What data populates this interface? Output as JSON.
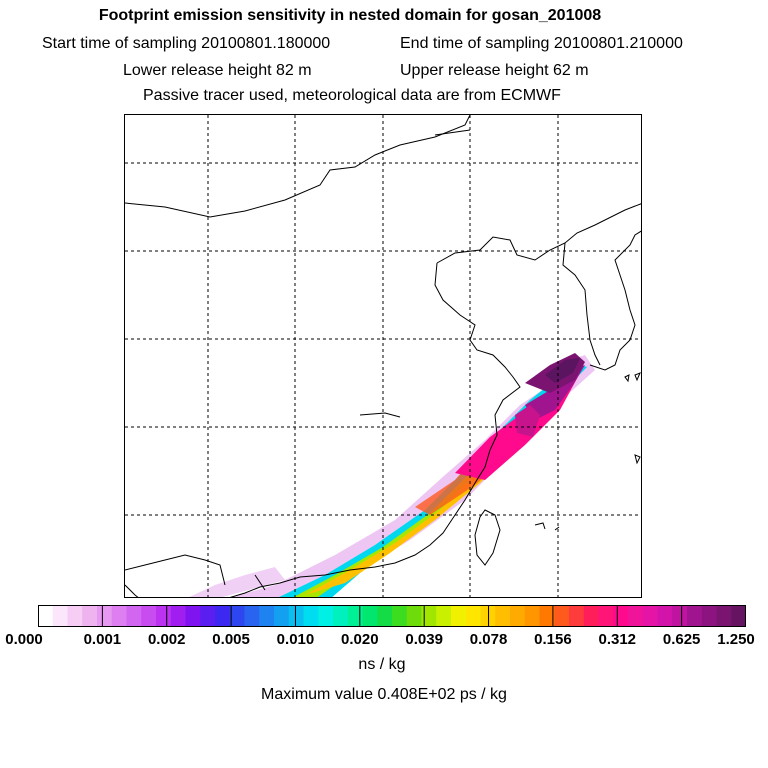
{
  "header": {
    "title": "Footprint emission sensitivity in nested domain for gosan_201008",
    "start_label": "Start time of sampling 20100801.180000",
    "end_label": "End time of sampling 20100801.210000",
    "lower_label": "Lower release height   82 m",
    "upper_label": "Upper release height   62 m",
    "info": "Passive tracer used, meteorological data are from ECMWF"
  },
  "colorbar": {
    "tick_labels": [
      "0.000",
      "0.001",
      "0.002",
      "0.005",
      "0.010",
      "0.020",
      "0.039",
      "0.078",
      "0.156",
      "0.312",
      "0.625",
      "1.250"
    ],
    "units": "ns / kg",
    "colors": [
      "#ffffff",
      "#fbe6fb",
      "#f5cdf5",
      "#efb3ef",
      "#e699f0",
      "#dd7ff0",
      "#d366f0",
      "#c84cf0",
      "#bb33f0",
      "#a01ef0",
      "#7f14f0",
      "#5a1ef0",
      "#3c28f0",
      "#2d46f0",
      "#2864f0",
      "#1e82f0",
      "#14a0f0",
      "#0abef0",
      "#00dcf0",
      "#00f0e6",
      "#00f0be",
      "#00f096",
      "#00e66e",
      "#14dc46",
      "#3cdc1e",
      "#6edc0a",
      "#a0e600",
      "#c8f000",
      "#f0f000",
      "#ffe600",
      "#ffd200",
      "#ffbe00",
      "#ffaa00",
      "#ff9600",
      "#ff7800",
      "#ff5a1e",
      "#ff3c3c",
      "#ff1e5a",
      "#ff1478",
      "#ff0a8c",
      "#f0149a",
      "#e614a6",
      "#d214aa",
      "#be14a0",
      "#a01490",
      "#8c1480",
      "#7a1470",
      "#641460"
    ]
  },
  "footer": {
    "max_value": "Maximum value  0.408E+02 ps / kg"
  }
}
